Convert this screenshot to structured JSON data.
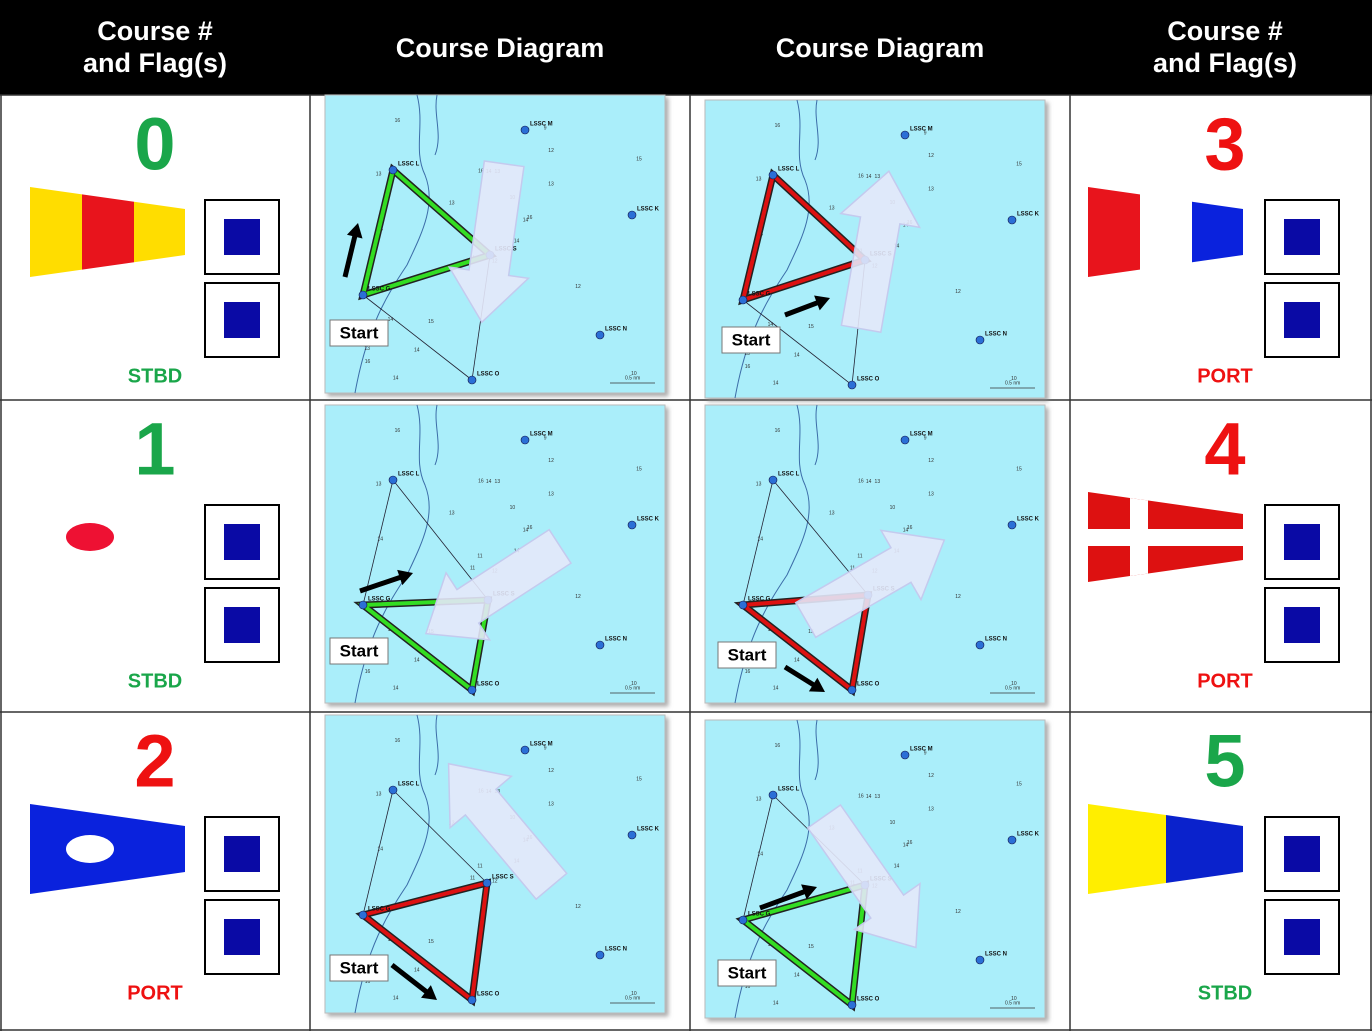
{
  "header": [
    [
      "Course #",
      "and Flag(s)"
    ],
    [
      "Course Diagram"
    ],
    [
      "Course Diagram"
    ],
    [
      "Course #",
      "and Flag(s)"
    ]
  ],
  "courses": [
    {
      "number": "0",
      "side": "STBD"
    },
    {
      "number": "1",
      "side": "STBD"
    },
    {
      "number": "2",
      "side": "PORT"
    },
    {
      "number": "3",
      "side": "PORT"
    },
    {
      "number": "4",
      "side": "PORT"
    },
    {
      "number": "5",
      "side": "STBD"
    }
  ],
  "map": {
    "marks": [
      "LSSC M",
      "LSSC L",
      "LSSC K",
      "LSSC G",
      "LSSC S",
      "LSSC N",
      "LSSC O"
    ],
    "start": "Start",
    "scale": "0.5 nm",
    "depths": [
      "12",
      "13",
      "11",
      "13",
      "14",
      "15",
      "9",
      "13",
      "12",
      "14",
      "16",
      "10",
      "14",
      "15",
      "11",
      "13",
      "14",
      "16",
      "10",
      "14",
      "13",
      "16",
      "14",
      "14",
      "16",
      "12"
    ]
  }
}
